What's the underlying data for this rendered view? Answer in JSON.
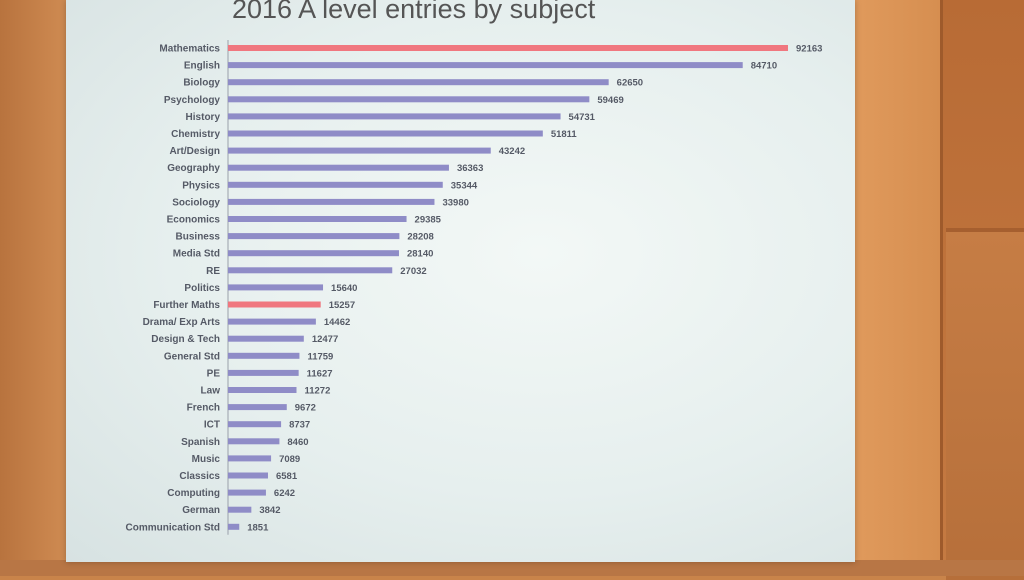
{
  "chart_data": {
    "type": "bar",
    "orientation": "horizontal",
    "title": "2016 A level entries by subject",
    "categories": [
      "Mathematics",
      "English",
      "Biology",
      "Psychology",
      "History",
      "Chemistry",
      "Art/Design",
      "Geography",
      "Physics",
      "Sociology",
      "Economics",
      "Business",
      "Media Std",
      "RE",
      "Politics",
      "Further Maths",
      "Drama/ Exp Arts",
      "Design & Tech",
      "General Std",
      "PE",
      "Law",
      "French",
      "ICT",
      "Spanish",
      "Music",
      "Classics",
      "Computing",
      "German",
      "Communication Std"
    ],
    "values": [
      92163,
      84710,
      62650,
      59469,
      54731,
      51811,
      43242,
      36363,
      35344,
      33980,
      29385,
      28208,
      28140,
      27032,
      15640,
      15257,
      14462,
      12477,
      11759,
      11627,
      11272,
      9672,
      8737,
      8460,
      7089,
      6581,
      6242,
      3842,
      1851
    ],
    "highlighted": [
      "Mathematics",
      "Further Maths"
    ],
    "xlim": [
      0,
      92163
    ],
    "grid": false,
    "legend": "none",
    "colors": {
      "bar": "#8f8cc7",
      "highlight": "#f0777f"
    }
  }
}
